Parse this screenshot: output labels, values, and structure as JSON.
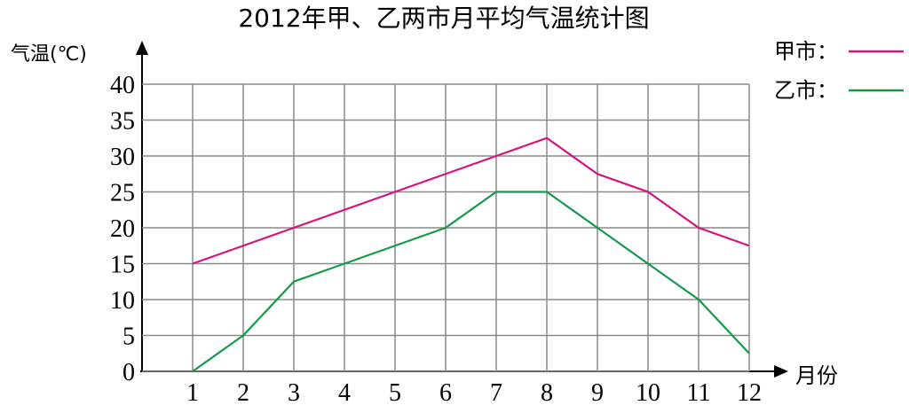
{
  "chart_data": {
    "type": "line",
    "title": "2012年甲、乙两市月平均气温统计图",
    "y_label": "气温(℃)",
    "x_label": "月份",
    "x": [
      1,
      2,
      3,
      4,
      5,
      6,
      7,
      8,
      9,
      10,
      11,
      12
    ],
    "xlim": [
      0,
      12
    ],
    "xticks": [
      1,
      2,
      3,
      4,
      5,
      6,
      7,
      8,
      9,
      10,
      11,
      12
    ],
    "ylim": [
      0,
      40
    ],
    "yticks": [
      0,
      5,
      10,
      15,
      20,
      25,
      30,
      35,
      40
    ],
    "grid": true,
    "series": [
      {
        "name": "甲市：",
        "color": "#d6127f",
        "values": [
          15,
          17.5,
          20,
          22.5,
          25,
          27.5,
          30,
          32.5,
          27.5,
          25,
          20,
          17.5
        ]
      },
      {
        "name": "乙市：",
        "color": "#149a4a",
        "values": [
          0,
          5,
          12.5,
          15,
          17.5,
          20,
          25,
          25,
          20,
          15,
          10,
          2.5
        ]
      }
    ]
  }
}
